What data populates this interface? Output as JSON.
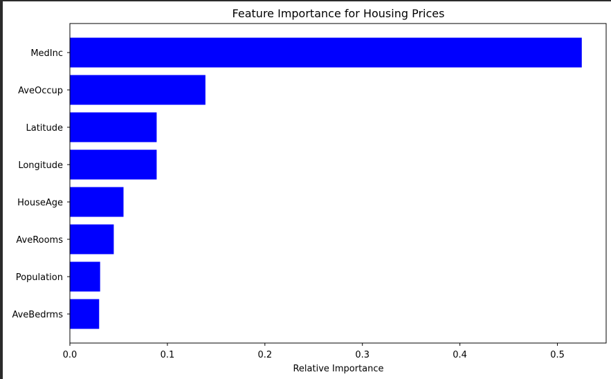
{
  "chart_data": {
    "type": "bar",
    "orientation": "horizontal",
    "title": "Feature Importance for Housing Prices",
    "xlabel": "Relative Importance",
    "ylabel": "",
    "categories": [
      "MedInc",
      "AveOccup",
      "Latitude",
      "Longitude",
      "HouseAge",
      "AveRooms",
      "Population",
      "AveBedrms"
    ],
    "values": [
      0.525,
      0.139,
      0.089,
      0.089,
      0.055,
      0.045,
      0.031,
      0.03
    ],
    "xlim": [
      0,
      0.55
    ],
    "xticks": [
      0.0,
      0.1,
      0.2,
      0.3,
      0.4,
      0.5
    ],
    "xtick_labels": [
      "0.0",
      "0.1",
      "0.2",
      "0.3",
      "0.4",
      "0.5"
    ],
    "bar_color": "#0000ff",
    "grid": false,
    "legend": "none"
  }
}
